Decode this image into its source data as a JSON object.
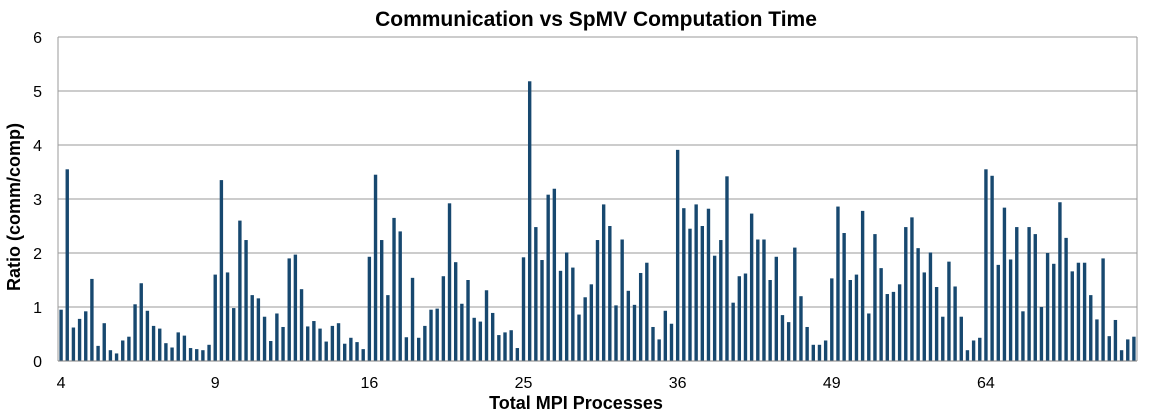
{
  "chart_data": {
    "type": "bar",
    "title": "Communication vs SpMV Computation Time",
    "xlabel": "Total MPI Processes",
    "ylabel": "Ratio (comm/comp)",
    "ylim": [
      0,
      6
    ],
    "yticks": [
      "0",
      "1",
      "2",
      "3",
      "4",
      "5",
      "6"
    ],
    "grid": true,
    "legend": "none",
    "bar_color": "#17486f",
    "grid_color": "#9a9a9a",
    "groups": [
      {
        "label": "4",
        "values": [
          0.95,
          3.55,
          0.62,
          0.78,
          0.92,
          1.52,
          0.28,
          0.7,
          0.2,
          0.14,
          0.38,
          0.45,
          1.05,
          1.44,
          0.93,
          0.65,
          0.6,
          0.33,
          0.25,
          0.53,
          0.47,
          0.24,
          0.22,
          0.2,
          0.3
        ]
      },
      {
        "label": "9",
        "values": [
          1.6,
          3.35,
          1.64,
          0.98,
          2.6,
          2.24,
          1.22,
          1.16,
          0.82,
          0.37,
          0.88,
          0.63,
          1.9,
          1.97,
          1.33,
          0.64,
          0.74,
          0.6,
          0.36,
          0.65,
          0.7,
          0.32,
          0.43,
          0.35,
          0.22
        ]
      },
      {
        "label": "16",
        "values": [
          1.93,
          3.45,
          2.24,
          1.22,
          2.65,
          2.4,
          0.44,
          1.54,
          0.43,
          0.65,
          0.95,
          0.97,
          1.57,
          2.92,
          1.83,
          1.06,
          1.5,
          0.8,
          0.73,
          1.31,
          0.89,
          0.48,
          0.53,
          0.57,
          0.24
        ]
      },
      {
        "label": "25",
        "values": [
          1.92,
          5.18,
          2.48,
          1.87,
          3.08,
          3.19,
          1.67,
          2.01,
          1.73,
          0.86,
          1.18,
          1.42,
          2.24,
          2.9,
          2.5,
          1.03,
          2.25,
          1.3,
          1.04,
          1.63,
          1.82,
          0.63,
          0.4,
          0.93,
          0.69
        ]
      },
      {
        "label": "36",
        "values": [
          3.91,
          2.83,
          2.45,
          2.9,
          2.5,
          2.82,
          1.95,
          2.24,
          3.42,
          1.08,
          1.57,
          1.62,
          2.73,
          2.25,
          2.25,
          1.5,
          1.93,
          0.85,
          0.72,
          2.1,
          1.2,
          0.63,
          0.3,
          0.3,
          0.38
        ]
      },
      {
        "label": "49",
        "values": [
          1.53,
          2.86,
          2.37,
          1.5,
          1.6,
          2.78,
          0.88,
          2.35,
          1.72,
          1.24,
          1.28,
          1.42,
          2.48,
          2.66,
          2.09,
          1.64,
          2.01,
          1.37,
          0.82,
          1.84,
          1.38,
          0.82,
          0.2,
          0.38,
          0.43
        ]
      },
      {
        "label": "64",
        "values": [
          3.55,
          3.43,
          1.78,
          2.84,
          1.88,
          2.48,
          0.92,
          2.48,
          2.35,
          1.0,
          2.0,
          1.8,
          2.94,
          2.28,
          1.66,
          1.82,
          1.82,
          1.22,
          0.77,
          1.9,
          0.46,
          0.76,
          0.2,
          0.4,
          0.45
        ]
      }
    ]
  }
}
